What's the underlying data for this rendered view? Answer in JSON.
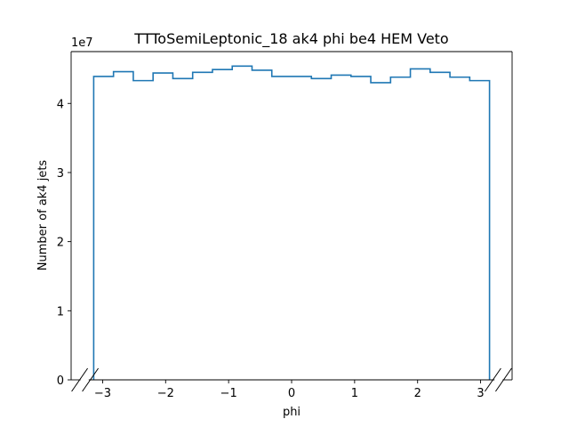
{
  "chart_data": {
    "type": "histogram",
    "title": "TTToSemiLeptonic_18 ak4 phi be4 HEM Veto",
    "xlabel": "phi",
    "ylabel": "Number of ak4 jets",
    "y_multiplier_label": "1e7",
    "xlim": [
      -3.5,
      3.5
    ],
    "ylim": [
      0,
      4.75
    ],
    "y_unit_factor": 10000000,
    "x_ticks": [
      -3,
      -2,
      -1,
      0,
      1,
      2,
      3
    ],
    "x_tick_labels": [
      "−3",
      "−2",
      "−1",
      "0",
      "1",
      "2",
      "3"
    ],
    "y_ticks": [
      0,
      1,
      2,
      3,
      4
    ],
    "y_tick_labels": [
      "0",
      "1",
      "2",
      "3",
      "4"
    ],
    "bin_edges": [
      -3.1416,
      -2.8274,
      -2.5133,
      -2.1991,
      -1.885,
      -1.5708,
      -1.2566,
      -0.9425,
      -0.6283,
      -0.3142,
      0.0,
      0.3142,
      0.6283,
      0.9425,
      1.2566,
      1.5708,
      1.885,
      2.1991,
      2.5133,
      2.8274,
      3.1416
    ],
    "values": [
      4.39,
      4.46,
      4.33,
      4.44,
      4.36,
      4.45,
      4.49,
      4.54,
      4.48,
      4.39,
      4.39,
      4.36,
      4.41,
      4.39,
      4.3,
      4.38,
      4.5,
      4.45,
      4.38,
      4.33
    ],
    "line_color": "#1f77b4",
    "axis_breaks": [
      "left",
      "right"
    ],
    "grid": false
  }
}
